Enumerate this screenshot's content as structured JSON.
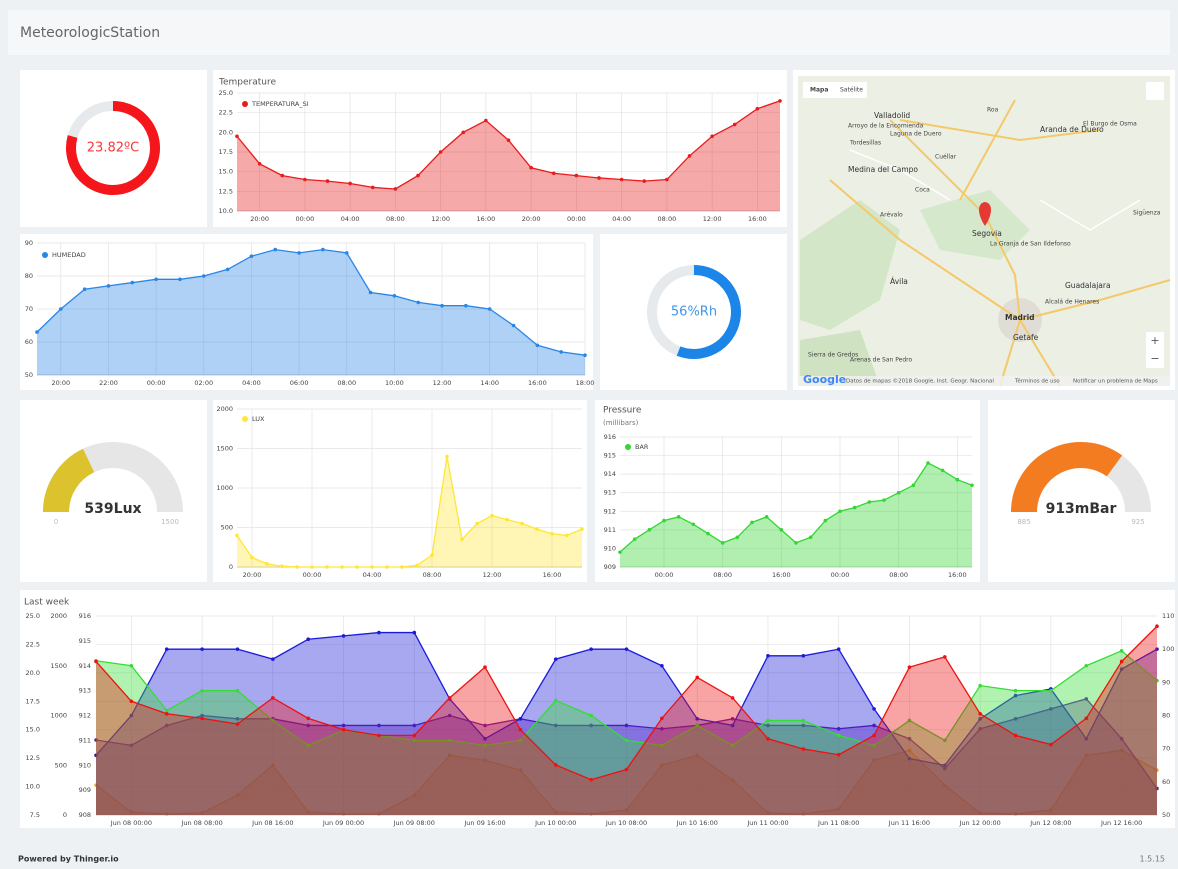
{
  "header": {
    "title": "MeteorologicStation"
  },
  "gauges": [
    {
      "type": "donut",
      "value": 23.82,
      "label": "23.82ºC",
      "range": [
        0,
        30
      ],
      "color": "#f5161b"
    },
    {
      "type": "donut",
      "value": 56,
      "label": "56%Rh",
      "range": [
        0,
        100
      ],
      "color": "#1c86e8"
    },
    {
      "type": "semi",
      "value": 539,
      "label": "539Lux",
      "range": [
        0,
        1500
      ],
      "color": "#dcc22d"
    },
    {
      "type": "semi",
      "value": 913,
      "label": "913mBar",
      "range": [
        885,
        925
      ],
      "color": "#f47c20"
    }
  ],
  "map": {
    "controls": [
      "Mapa",
      "Satélite"
    ],
    "places": [
      "Valladolid",
      "Arroyo de la Encomienda",
      "Tordesillas",
      "Laguna de Duero",
      "Aranda de Duero",
      "Roa",
      "El Burgo de Osma",
      "Medina del Campo",
      "Cuéllar",
      "Coca",
      "Arévalo",
      "Segovia",
      "La Granja de San Ildefonso",
      "Sigüenza",
      "Ávila",
      "Guadalajara",
      "Alcalá de Henares",
      "Madrid",
      "Getafe",
      "Sierra de Gredos",
      "Arenas de San Pedro"
    ],
    "logo": "Google",
    "attribution": "Datos de mapas ©2018 Google, Inst. Geogr. Nacional",
    "terms": "Términos de uso",
    "report": "Notificar un problema de Maps"
  },
  "chart_data": [
    {
      "type": "area",
      "title": "Temperature",
      "grid": true,
      "categories": [
        null,
        "20:00",
        null,
        "00:00",
        null,
        "04:00",
        null,
        "08:00",
        null,
        "12:00",
        null,
        "16:00",
        null,
        "20:00",
        null,
        "00:00",
        null,
        "04:00",
        null,
        "08:00",
        null,
        "12:00",
        null,
        "16:00",
        null
      ],
      "ylim": [
        10,
        25
      ],
      "yticks": [
        {
          "value": 10,
          "label": "10.0"
        },
        12.5,
        {
          "value": 15,
          "label": "15.0"
        },
        17.5,
        {
          "value": 20,
          "label": "20.0"
        },
        22.5,
        {
          "value": 25,
          "label": "25.0"
        }
      ],
      "series": [
        {
          "name": "TEMPERATURA_SI",
          "color": "#e81c1c",
          "values": [
            19.5,
            16,
            14.5,
            14,
            13.8,
            13.5,
            13,
            12.8,
            14.5,
            17.5,
            20,
            21.5,
            19,
            15.5,
            14.8,
            14.5,
            14.2,
            14,
            13.8,
            14,
            17,
            19.5,
            21,
            23,
            24
          ]
        }
      ]
    },
    {
      "type": "area",
      "grid": true,
      "categories": [
        null,
        "20:00",
        null,
        "22:00",
        null,
        "00:00",
        null,
        "02:00",
        null,
        "04:00",
        null,
        "06:00",
        null,
        "08:00",
        null,
        "10:00",
        null,
        "12:00",
        null,
        "14:00",
        null,
        "16:00",
        null,
        "18:00"
      ],
      "ylim": [
        50,
        90
      ],
      "yticks": [
        50,
        60,
        70,
        80,
        90
      ],
      "series": [
        {
          "name": "HUMEDAD",
          "color": "#2a86e6",
          "values": [
            63,
            70,
            76,
            77,
            78,
            79,
            79,
            80,
            82,
            86,
            88,
            87,
            88,
            87,
            75,
            74,
            72,
            71,
            71,
            70,
            65,
            59,
            57,
            56
          ]
        }
      ]
    },
    {
      "type": "area",
      "grid": true,
      "categories": [
        null,
        "20:00",
        null,
        null,
        null,
        "00:00",
        null,
        null,
        null,
        "04:00",
        null,
        null,
        null,
        "08:00",
        null,
        null,
        null,
        "12:00",
        null,
        null,
        null,
        "16:00",
        null,
        null
      ],
      "ylim": [
        0,
        2000
      ],
      "yticks": [
        0,
        500,
        1000,
        1500,
        2000
      ],
      "series": [
        {
          "name": "LUX",
          "color": "#ffe63b",
          "values": [
            400,
            120,
            40,
            10,
            0,
            0,
            0,
            0,
            0,
            0,
            0,
            0,
            20,
            150,
            1400,
            350,
            550,
            650,
            600,
            550,
            480,
            420,
            400,
            480
          ]
        }
      ]
    },
    {
      "type": "area",
      "title": "Pressure",
      "subtitle": "(millibars)",
      "grid": true,
      "categories": [
        null,
        null,
        null,
        "00:00",
        null,
        null,
        null,
        "08:00",
        null,
        null,
        null,
        "16:00",
        null,
        null,
        null,
        "00:00",
        null,
        null,
        null,
        "08:00",
        null,
        null,
        null,
        "16:00",
        null
      ],
      "ylim": [
        909,
        916
      ],
      "yticks": [
        909,
        910,
        911,
        912,
        913,
        914,
        915,
        916
      ],
      "series": [
        {
          "name": "BAR",
          "color": "#33d633",
          "values": [
            909.8,
            910.5,
            911,
            911.5,
            911.7,
            911.3,
            910.8,
            910.3,
            910.6,
            911.4,
            911.7,
            911,
            910.3,
            910.6,
            911.5,
            912,
            912.2,
            912.5,
            912.6,
            913,
            913.4,
            914.6,
            914.2,
            913.7,
            913.4
          ]
        }
      ]
    },
    {
      "type": "area",
      "title": "Last week",
      "grid": true,
      "categories": [
        null,
        "Jun 08 00:00",
        null,
        "Jun 08 08:00",
        null,
        "Jun 08 16:00",
        null,
        "Jun 09 00:00",
        null,
        "Jun 09 08:00",
        null,
        "Jun 09 16:00",
        null,
        "Jun 10 00:00",
        null,
        "Jun 10 08:00",
        null,
        "Jun 10 16:00",
        null,
        "Jun 11 00:00",
        null,
        "Jun 11 08:00",
        null,
        "Jun 11 16:00",
        null,
        "Jun 12 00:00",
        null,
        "Jun 12 08:00",
        null,
        "Jun 12 16:00",
        null
      ],
      "ylim": [
        7.5,
        25
      ],
      "yticks": [
        7.5,
        {
          "value": 10,
          "label": "10.0"
        },
        12.5,
        {
          "value": 15,
          "label": "15.0"
        },
        17.5,
        {
          "value": 20,
          "label": "20.0"
        },
        22.5,
        {
          "value": 25,
          "label": "25.0"
        }
      ],
      "y3lim": [
        0,
        2000
      ],
      "y3ticks": [
        0,
        500,
        1000,
        1500,
        2000
      ],
      "y4lim": [
        908,
        916
      ],
      "y4ticks": [
        908,
        909,
        910,
        911,
        912,
        913,
        914,
        915,
        916
      ],
      "y2lim": [
        50,
        110
      ],
      "y2ticks": [
        50,
        60,
        70,
        80,
        90,
        100,
        110
      ],
      "series": [
        {
          "color": "#ffa41c",
          "axis": "y3",
          "values": [
            300,
            30,
            10,
            20,
            200,
            500,
            30,
            10,
            10,
            200,
            600,
            550,
            450,
            30,
            10,
            50,
            500,
            600,
            350,
            20,
            10,
            60,
            550,
            650,
            300,
            20,
            10,
            50,
            600,
            650,
            450
          ]
        },
        {
          "color": "#6a1fb0",
          "axis": "y2",
          "values": [
            72.6,
            71,
            77,
            80,
            79,
            79,
            77,
            77,
            77,
            77,
            80,
            77,
            79,
            77,
            77,
            77,
            76,
            77,
            79,
            77,
            77,
            76,
            77,
            73,
            64,
            76,
            79,
            82,
            85,
            73,
            58
          ]
        },
        {
          "color": "#1a1adb",
          "axis": "y2",
          "values": [
            68,
            80,
            100,
            100,
            100,
            97,
            103,
            104,
            105,
            105,
            85,
            73,
            79,
            97,
            100,
            100,
            95,
            79,
            77,
            98,
            98,
            100,
            82,
            67,
            65,
            79,
            86,
            88,
            73,
            94,
            100
          ]
        },
        {
          "color": "#33dd33",
          "axis": "y4",
          "values": [
            914.2,
            914,
            912.2,
            913,
            913,
            911.8,
            910.8,
            911.4,
            911.2,
            911,
            911,
            910.8,
            911,
            912.6,
            912,
            911,
            910.8,
            911.6,
            910.8,
            911.8,
            911.8,
            911.2,
            910.8,
            911.8,
            911,
            913.2,
            913,
            913,
            914,
            914.6,
            913.4
          ]
        },
        {
          "color": "#ee1111",
          "values": [
            21,
            17.5,
            16.4,
            16,
            15.5,
            17.8,
            16,
            15,
            14.5,
            14.5,
            17.8,
            20.5,
            15,
            11.9,
            10.6,
            11.5,
            16,
            19.6,
            17.8,
            14.2,
            13.3,
            12.8,
            14.5,
            20.5,
            21.4,
            16.4,
            14.5,
            13.7,
            16,
            21,
            24.1
          ]
        }
      ]
    }
  ],
  "footer": {
    "powered": "Powered by Thinger.io",
    "version": "1.5.15"
  }
}
